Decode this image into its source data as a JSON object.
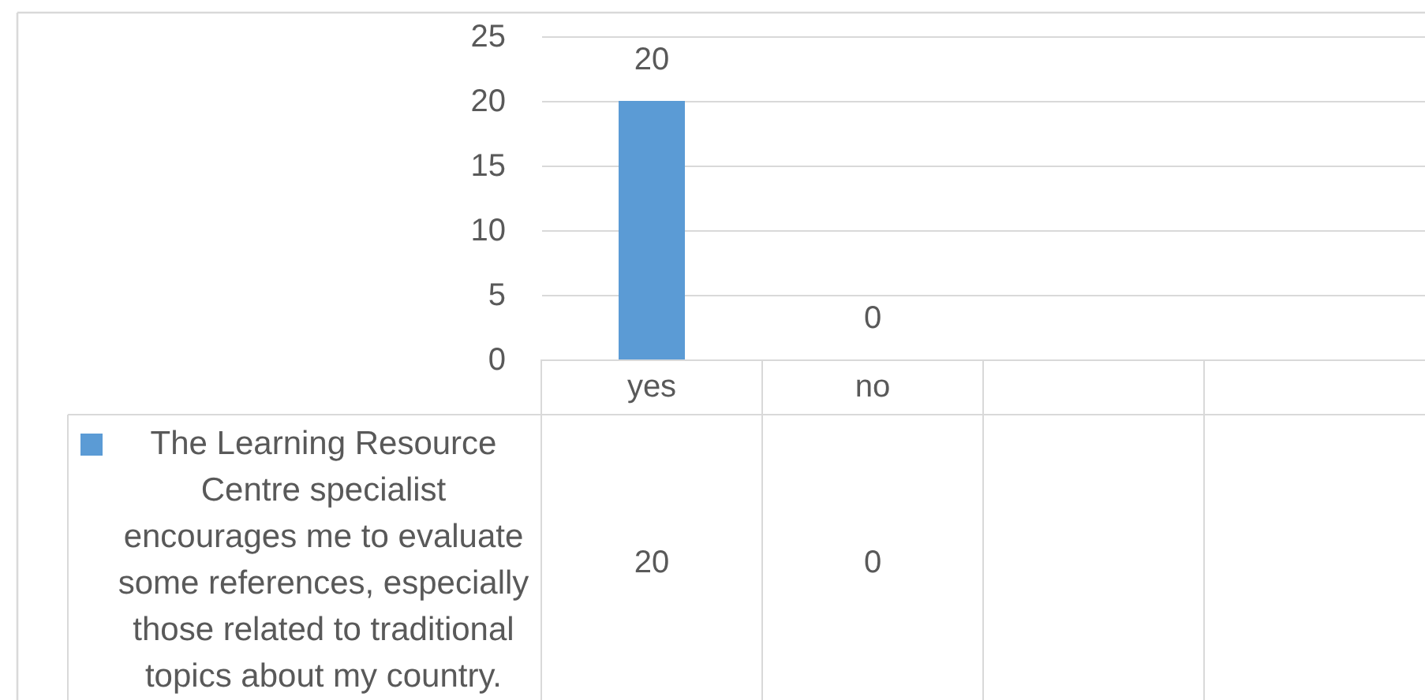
{
  "chart_data": {
    "type": "bar",
    "categories": [
      "yes",
      "no",
      null,
      null
    ],
    "series": [
      {
        "name": "The Learning Resource Centre specialist encourages me to evaluate some references, especially those related to traditional topics about my country.",
        "color": "#5b9bd5",
        "values": [
          20,
          0,
          null,
          null
        ]
      }
    ],
    "ylim": [
      0,
      25
    ],
    "yticks": [
      0,
      5,
      10,
      15,
      20,
      25
    ],
    "grid": "y",
    "data_labels": true,
    "legend": "bottom left",
    "annotations": [
      {
        "text": "20",
        "x": "yes",
        "y": 20
      },
      {
        "text": "0",
        "x": "no",
        "y": 0
      }
    ]
  }
}
